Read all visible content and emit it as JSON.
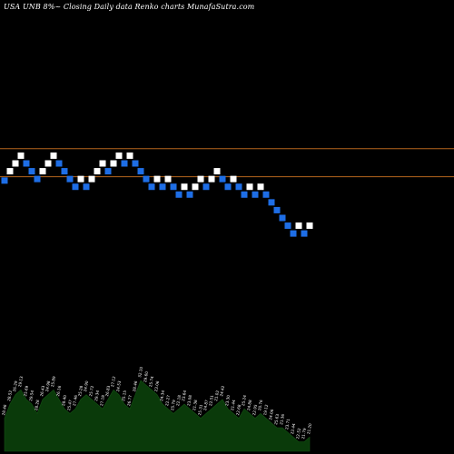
{
  "header": {
    "title": "USA UNB 8%~  Closing Daily data  Renko  charts MunafaSutra.com"
  },
  "chart_data": {
    "type": "renko",
    "ylim": [
      19.0,
      29.5
    ],
    "reference_lines": [
      {
        "value": 26.95,
        "color": "#b5651d"
      },
      {
        "value": 25.15,
        "color": "#b5651d"
      }
    ],
    "colors": {
      "up": "#ffffff",
      "down": "#1e6ee6",
      "grid": "#b5651d",
      "volume": "#0a3a0a"
    },
    "bricks": [
      {
        "dir": "down",
        "value": 24.9
      },
      {
        "dir": "up",
        "value": 25.5
      },
      {
        "dir": "up",
        "value": 26.0
      },
      {
        "dir": "up",
        "value": 26.5
      },
      {
        "dir": "down",
        "value": 26.0
      },
      {
        "dir": "down",
        "value": 25.5
      },
      {
        "dir": "down",
        "value": 25.0
      },
      {
        "dir": "up",
        "value": 25.5
      },
      {
        "dir": "up",
        "value": 26.0
      },
      {
        "dir": "up",
        "value": 26.5
      },
      {
        "dir": "down",
        "value": 26.0
      },
      {
        "dir": "down",
        "value": 25.5
      },
      {
        "dir": "down",
        "value": 25.0
      },
      {
        "dir": "down",
        "value": 24.5
      },
      {
        "dir": "up",
        "value": 25.0
      },
      {
        "dir": "down",
        "value": 24.5
      },
      {
        "dir": "up",
        "value": 25.0
      },
      {
        "dir": "up",
        "value": 25.5
      },
      {
        "dir": "up",
        "value": 26.0
      },
      {
        "dir": "down",
        "value": 25.5
      },
      {
        "dir": "up",
        "value": 26.0
      },
      {
        "dir": "up",
        "value": 26.5
      },
      {
        "dir": "down",
        "value": 26.0
      },
      {
        "dir": "up",
        "value": 26.5
      },
      {
        "dir": "down",
        "value": 26.0
      },
      {
        "dir": "down",
        "value": 25.5
      },
      {
        "dir": "down",
        "value": 25.0
      },
      {
        "dir": "down",
        "value": 24.5
      },
      {
        "dir": "up",
        "value": 25.0
      },
      {
        "dir": "down",
        "value": 24.5
      },
      {
        "dir": "up",
        "value": 25.0
      },
      {
        "dir": "down",
        "value": 24.5
      },
      {
        "dir": "down",
        "value": 24.0
      },
      {
        "dir": "up",
        "value": 24.5
      },
      {
        "dir": "down",
        "value": 24.0
      },
      {
        "dir": "up",
        "value": 24.5
      },
      {
        "dir": "up",
        "value": 25.0
      },
      {
        "dir": "down",
        "value": 24.5
      },
      {
        "dir": "up",
        "value": 25.0
      },
      {
        "dir": "up",
        "value": 25.5
      },
      {
        "dir": "down",
        "value": 25.0
      },
      {
        "dir": "down",
        "value": 24.5
      },
      {
        "dir": "up",
        "value": 25.0
      },
      {
        "dir": "down",
        "value": 24.5
      },
      {
        "dir": "down",
        "value": 24.0
      },
      {
        "dir": "up",
        "value": 24.5
      },
      {
        "dir": "down",
        "value": 24.0
      },
      {
        "dir": "up",
        "value": 24.5
      },
      {
        "dir": "down",
        "value": 24.0
      },
      {
        "dir": "down",
        "value": 23.5
      },
      {
        "dir": "down",
        "value": 23.0
      },
      {
        "dir": "down",
        "value": 22.5
      },
      {
        "dir": "down",
        "value": 22.0
      },
      {
        "dir": "down",
        "value": 21.5
      },
      {
        "dir": "up",
        "value": 22.0
      },
      {
        "dir": "down",
        "value": 21.5
      },
      {
        "dir": "up",
        "value": 22.0
      }
    ],
    "volume": [
      7,
      10,
      12,
      13,
      11,
      10,
      8,
      11,
      12,
      13,
      11,
      9,
      8,
      9,
      11,
      12,
      11,
      10,
      9,
      11,
      13,
      12,
      10,
      9,
      12,
      15,
      14,
      13,
      12,
      10,
      9,
      8,
      9,
      10,
      9,
      8,
      7,
      8,
      9,
      10,
      11,
      9,
      8,
      7,
      9,
      8,
      7,
      8,
      7,
      6,
      5,
      5,
      4,
      3,
      2,
      2,
      3
    ],
    "volume_labels": [
      "28.46",
      "28.52",
      "26.29",
      "29.13",
      "25.69",
      "29.54",
      "28.28",
      "26.43",
      "24.98",
      "25.89",
      "26.16",
      "28.40",
      "25.47",
      "27.46",
      "25.28",
      "24.90",
      "25.72",
      "29.34",
      "27.18",
      "26.83",
      "27.12",
      "24.53",
      "25.15",
      "26.77",
      "28.46",
      "32.10",
      "29.60",
      "25.74",
      "23.06",
      "24.34",
      "22.27",
      "25.79",
      "22.18",
      "23.64",
      "23.08",
      "21.38",
      "25.31",
      "24.87",
      "22.51",
      "21.02",
      "24.42",
      "23.30",
      "21.44",
      "22.68",
      "25.24",
      "24.88",
      "22.95",
      "20.76",
      "19.12",
      "24.06",
      "25.63",
      "21.36",
      "23.71",
      "22.44",
      "22.52",
      "21.79",
      "21.20"
    ]
  }
}
